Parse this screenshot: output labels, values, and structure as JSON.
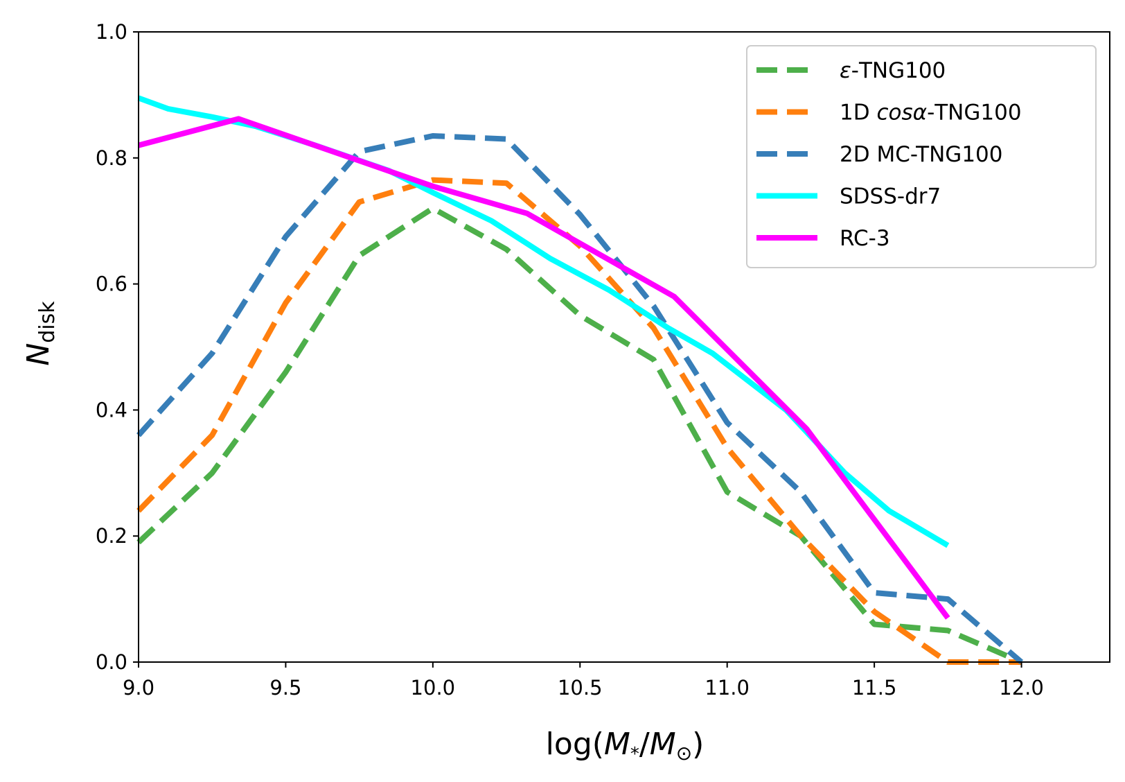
{
  "chart_data": {
    "type": "line",
    "title": "",
    "xlabel": {
      "prefix": "log(",
      "M": "M",
      "star": "*",
      "slash": "/",
      "M2": "M",
      "sun": "⊙",
      "suffix": ")"
    },
    "ylabel": {
      "main": "N",
      "sub": "disk"
    },
    "xlim": [
      9.0,
      12.3
    ],
    "ylim": [
      0.0,
      1.0
    ],
    "xticks": [
      "9.0",
      "9.5",
      "10.0",
      "10.5",
      "11.0",
      "11.5",
      "12.0"
    ],
    "xtick_values": [
      9.0,
      9.5,
      10.0,
      10.5,
      11.0,
      11.5,
      12.0
    ],
    "yticks": [
      "0.0",
      "0.2",
      "0.4",
      "0.6",
      "0.8",
      "1.0"
    ],
    "ytick_values": [
      0.0,
      0.2,
      0.4,
      0.6,
      0.8,
      1.0
    ],
    "grid": false,
    "legend_position": "top-right",
    "series": [
      {
        "name": "ε-TNG100",
        "legend_pre": "",
        "legend_italic": "ε",
        "legend_post": "-TNG100",
        "color": "#4daf4a",
        "style": "dashed",
        "x": [
          9.0,
          9.25,
          9.5,
          9.75,
          10.0,
          10.25,
          10.5,
          10.75,
          11.0,
          11.25,
          11.5,
          11.75,
          12.0
        ],
        "y": [
          0.19,
          0.3,
          0.46,
          0.645,
          0.72,
          0.655,
          0.55,
          0.48,
          0.27,
          0.2,
          0.06,
          0.05,
          0.0
        ]
      },
      {
        "name": "1D cosα-TNG100",
        "legend_pre": "1D ",
        "legend_italic": "cosα",
        "legend_post": "-TNG100",
        "color": "#ff7f0e",
        "style": "dashed",
        "x": [
          9.0,
          9.25,
          9.5,
          9.75,
          10.0,
          10.25,
          10.5,
          10.75,
          11.0,
          11.25,
          11.5,
          11.75,
          12.0
        ],
        "y": [
          0.24,
          0.36,
          0.57,
          0.73,
          0.765,
          0.76,
          0.66,
          0.53,
          0.34,
          0.2,
          0.08,
          0.0,
          0.0
        ]
      },
      {
        "name": "2D MC-TNG100",
        "legend_pre": "2D MC-TNG100",
        "legend_italic": "",
        "legend_post": "",
        "color": "#377eb8",
        "style": "dashed",
        "x": [
          9.0,
          9.25,
          9.5,
          9.75,
          10.0,
          10.25,
          10.5,
          10.75,
          11.0,
          11.25,
          11.5,
          11.75,
          12.0
        ],
        "y": [
          0.36,
          0.49,
          0.675,
          0.81,
          0.835,
          0.83,
          0.71,
          0.565,
          0.38,
          0.27,
          0.11,
          0.1,
          0.0
        ]
      },
      {
        "name": "SDSS-dr7",
        "legend_pre": "SDSS-dr7",
        "legend_italic": "",
        "legend_post": "",
        "color": "#00ffff",
        "style": "solid",
        "x": [
          9.0,
          9.1,
          9.25,
          9.4,
          9.6,
          9.85,
          10.0,
          10.2,
          10.4,
          10.6,
          10.8,
          10.95,
          11.2,
          11.4,
          11.55,
          11.75
        ],
        "y": [
          0.895,
          0.878,
          0.865,
          0.85,
          0.82,
          0.78,
          0.745,
          0.7,
          0.64,
          0.59,
          0.53,
          0.49,
          0.4,
          0.3,
          0.24,
          0.185
        ]
      },
      {
        "name": "RC-3",
        "legend_pre": "RC-3",
        "legend_italic": "",
        "legend_post": "",
        "color": "#ff00ff",
        "style": "solid",
        "x": [
          9.0,
          9.34,
          10.0,
          10.32,
          10.82,
          11.27,
          11.75
        ],
        "y": [
          0.82,
          0.862,
          0.755,
          0.712,
          0.58,
          0.37,
          0.07
        ]
      }
    ]
  }
}
